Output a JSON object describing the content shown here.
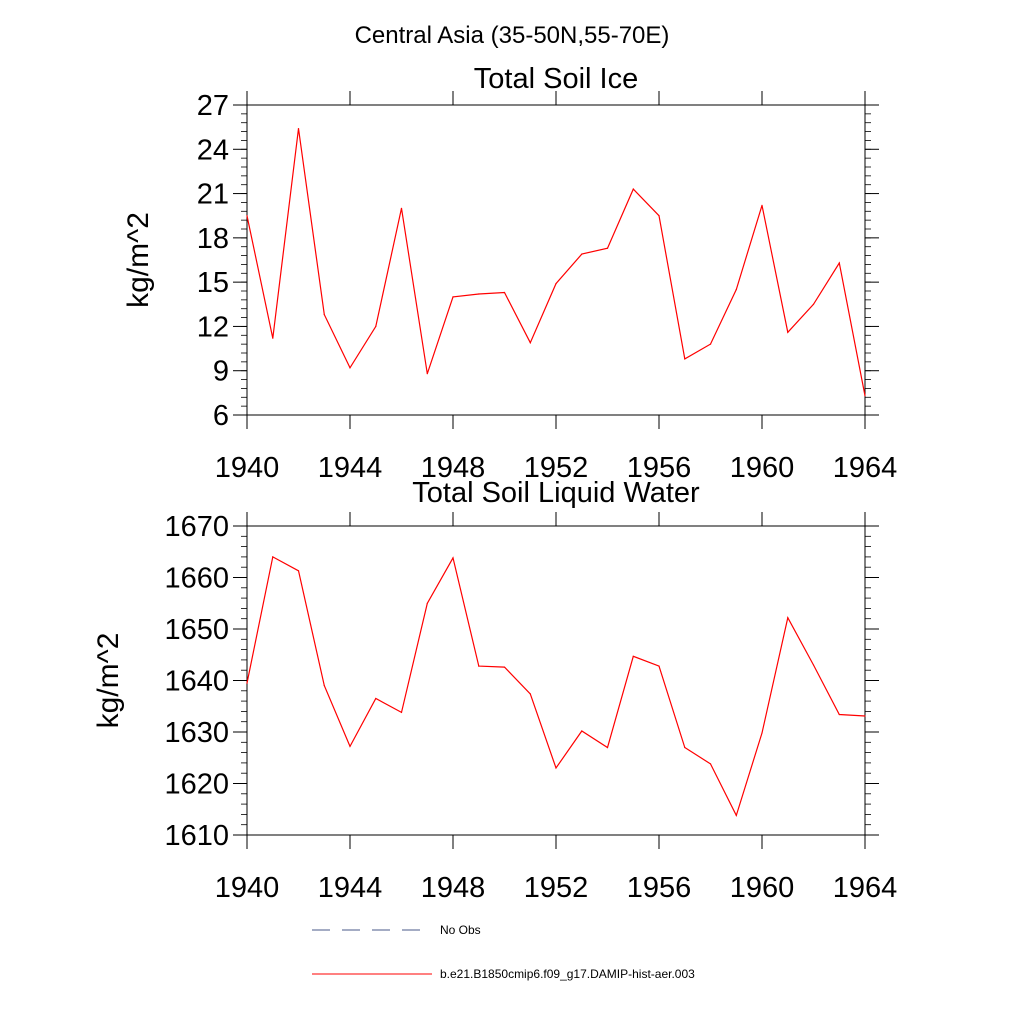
{
  "figure": {
    "suptitle": "Central Asia (35-50N,55-70E)",
    "legend": {
      "items": [
        {
          "label": "No Obs",
          "style": "dashed",
          "color": "#4a5a8a"
        },
        {
          "label": "b.e21.B1850cmip6.f09_g17.DAMIP-hist-aer.003",
          "style": "solid",
          "color": "#ff0000"
        }
      ]
    }
  },
  "chart_data": [
    {
      "type": "line",
      "title": "Total Soil Ice",
      "xlabel": "",
      "ylabel": "kg/m^2",
      "xlim": [
        1940,
        1964
      ],
      "ylim": [
        6,
        27
      ],
      "xticks": [
        1940,
        1944,
        1948,
        1952,
        1956,
        1960,
        1964
      ],
      "yticks": [
        6,
        9,
        12,
        15,
        18,
        21,
        24,
        27
      ],
      "yminor_step": 0.6,
      "grid": false,
      "series": [
        {
          "name": "b.e21.B1850cmip6.f09_g17.DAMIP-hist-aer.003",
          "color": "#ff0000",
          "x": [
            1940,
            1941,
            1942,
            1943,
            1944,
            1945,
            1946,
            1947,
            1948,
            1949,
            1950,
            1951,
            1952,
            1953,
            1954,
            1955,
            1956,
            1957,
            1958,
            1959,
            1960,
            1961,
            1962,
            1963,
            1964
          ],
          "values": [
            19.5,
            11.2,
            25.4,
            12.8,
            9.2,
            12.0,
            20.0,
            8.8,
            14.0,
            14.2,
            14.3,
            10.9,
            14.9,
            16.9,
            17.3,
            21.3,
            19.5,
            9.8,
            10.8,
            14.5,
            20.2,
            11.6,
            13.5,
            16.3,
            7.3
          ]
        }
      ]
    },
    {
      "type": "line",
      "title": "Total Soil Liquid Water",
      "xlabel": "",
      "ylabel": "kg/m^2",
      "xlim": [
        1940,
        1964
      ],
      "ylim": [
        1610,
        1670
      ],
      "xticks": [
        1940,
        1944,
        1948,
        1952,
        1956,
        1960,
        1964
      ],
      "yticks": [
        1610,
        1620,
        1630,
        1640,
        1650,
        1660,
        1670
      ],
      "yminor_step": 2,
      "grid": false,
      "series": [
        {
          "name": "b.e21.B1850cmip6.f09_g17.DAMIP-hist-aer.003",
          "color": "#ff0000",
          "x": [
            1940,
            1941,
            1942,
            1943,
            1944,
            1945,
            1946,
            1947,
            1948,
            1949,
            1950,
            1951,
            1952,
            1953,
            1954,
            1955,
            1956,
            1957,
            1958,
            1959,
            1960,
            1961,
            1962,
            1963,
            1964
          ],
          "values": [
            1639.5,
            1664.0,
            1661.3,
            1639.0,
            1627.2,
            1636.5,
            1633.8,
            1655.0,
            1663.8,
            1642.8,
            1642.6,
            1637.4,
            1623.0,
            1630.2,
            1627.0,
            1644.7,
            1642.8,
            1627.0,
            1623.8,
            1613.8,
            1629.8,
            1652.2,
            1643.0,
            1633.4,
            1633.1
          ]
        }
      ]
    }
  ]
}
